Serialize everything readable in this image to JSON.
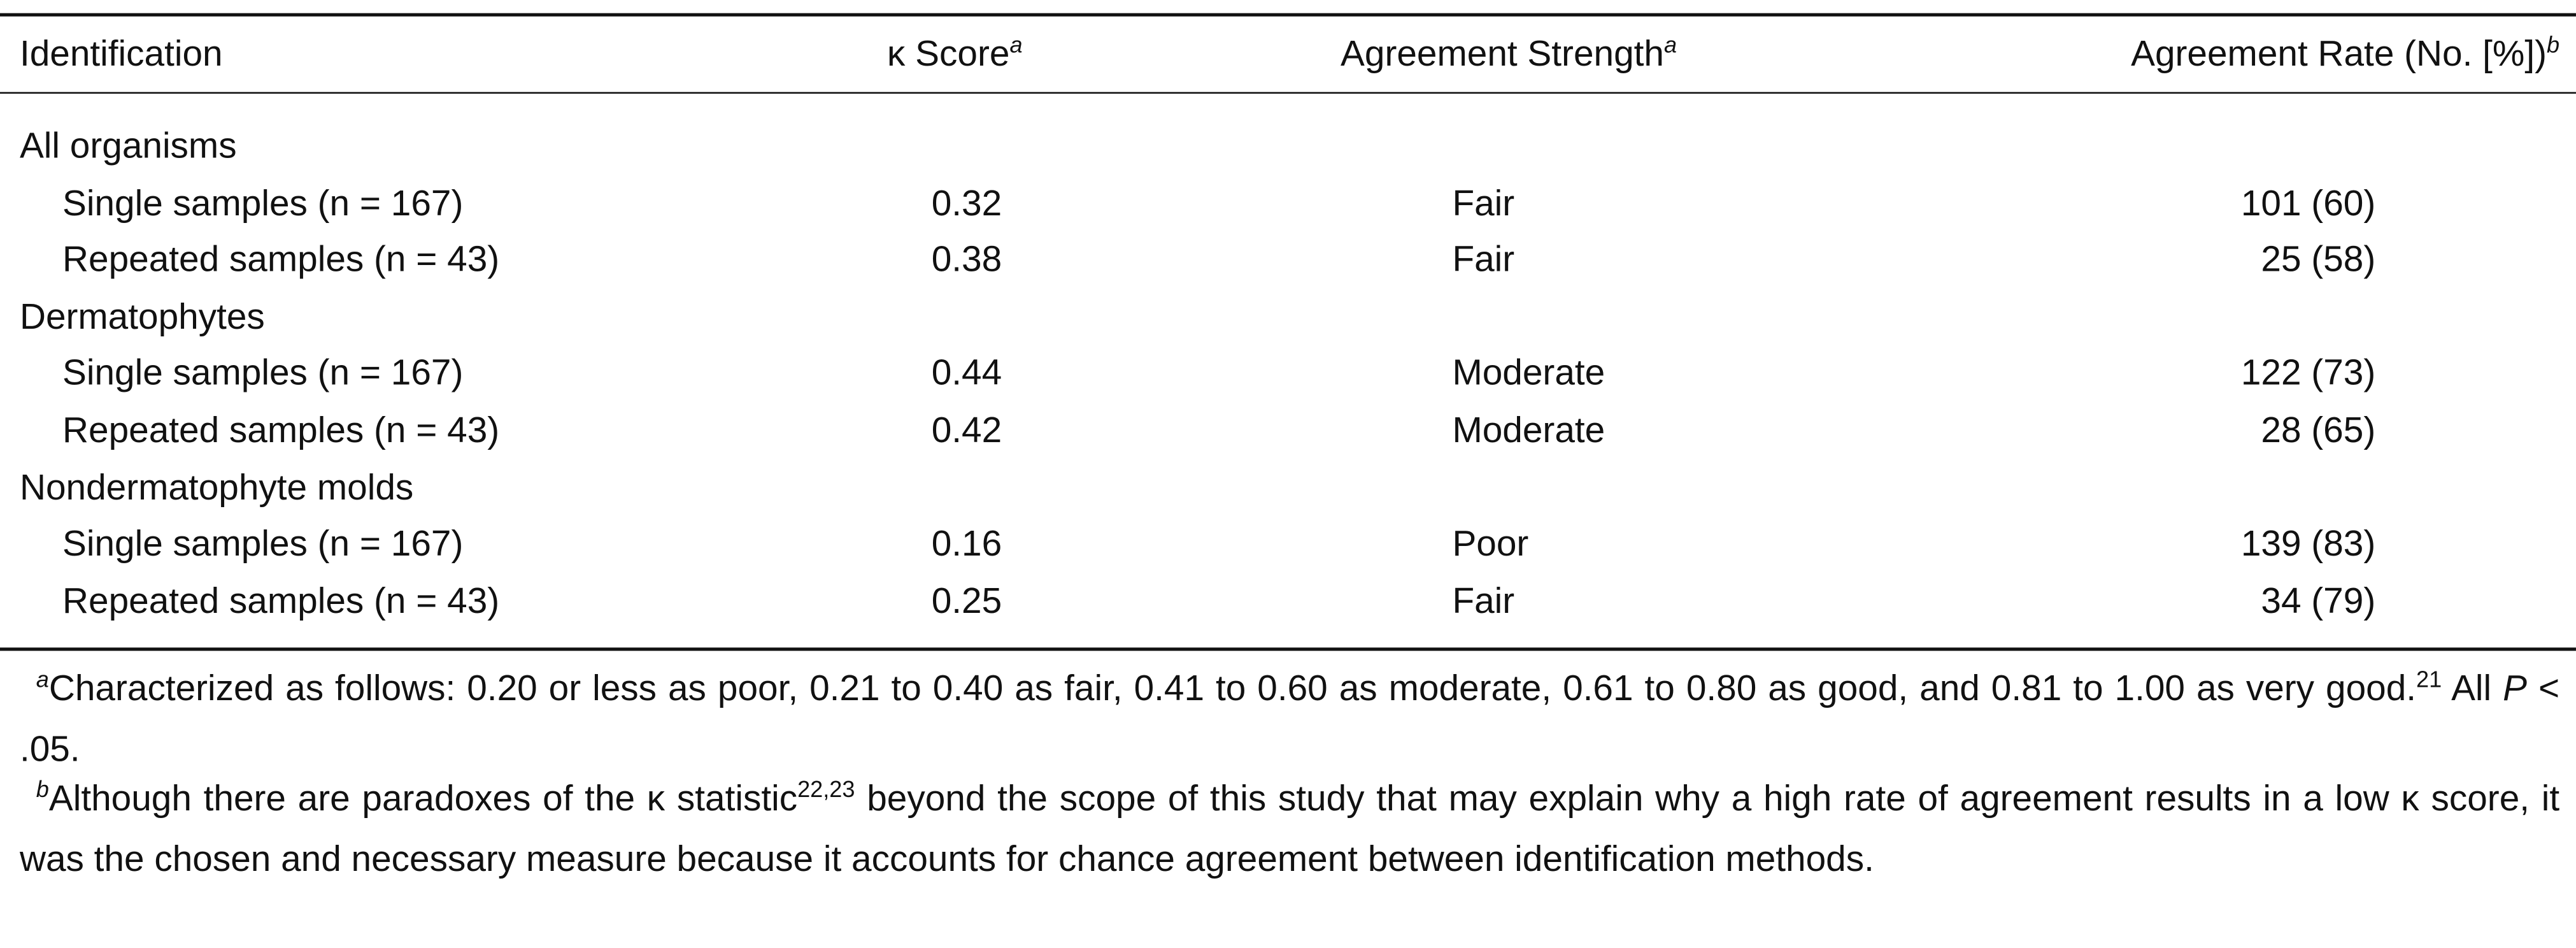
{
  "table": {
    "columns": [
      {
        "text": "Identification"
      },
      {
        "text": "κ Score",
        "sup": "a"
      },
      {
        "text": "Agreement Strength",
        "sup": "a"
      },
      {
        "text": "Agreement Rate (No. [%])",
        "sup": "b"
      }
    ],
    "groups": [
      {
        "label": "All organisms",
        "rows": [
          [
            "Single samples (n = 167)",
            "0.32",
            "Fair",
            "101 (60)"
          ],
          [
            "Repeated samples (n = 43)",
            "0.38",
            "Fair",
            "25 (58)"
          ]
        ]
      },
      {
        "label": "Dermatophytes",
        "rows": [
          [
            "Single samples (n = 167)",
            "0.44",
            "Moderate",
            "122 (73)"
          ],
          [
            "Repeated samples (n = 43)",
            "0.42",
            "Moderate",
            "28 (65)"
          ]
        ]
      },
      {
        "label": "Nondermatophyte molds",
        "rows": [
          [
            "Single samples (n = 167)",
            "0.16",
            "Poor",
            "139 (83)"
          ],
          [
            "Repeated samples (n = 43)",
            "0.25",
            "Fair",
            "34 (79)"
          ]
        ]
      }
    ]
  },
  "footnotes": [
    {
      "mark": "a",
      "parts": [
        {
          "text": "Characterized as follows: 0.20 or less as poor, 0.21 to 0.40 as fair, 0.41 to 0.60 as moderate, 0.61 to 0.80 as good, and 0.81 to 1.00 as very good."
        },
        {
          "text": "21",
          "style": "sup"
        },
        {
          "text": " All "
        },
        {
          "text": "P",
          "style": "italic"
        },
        {
          "text": " < .05."
        }
      ]
    },
    {
      "mark": "b",
      "parts": [
        {
          "text": "Although there are paradoxes of the κ statistic"
        },
        {
          "text": "22,23",
          "style": "sup"
        },
        {
          "text": " beyond the scope of this study that may explain why a high rate of agreement results in a low κ score, it was the chosen and necessary measure because it accounts for chance agreement between identification methods."
        }
      ]
    }
  ]
}
